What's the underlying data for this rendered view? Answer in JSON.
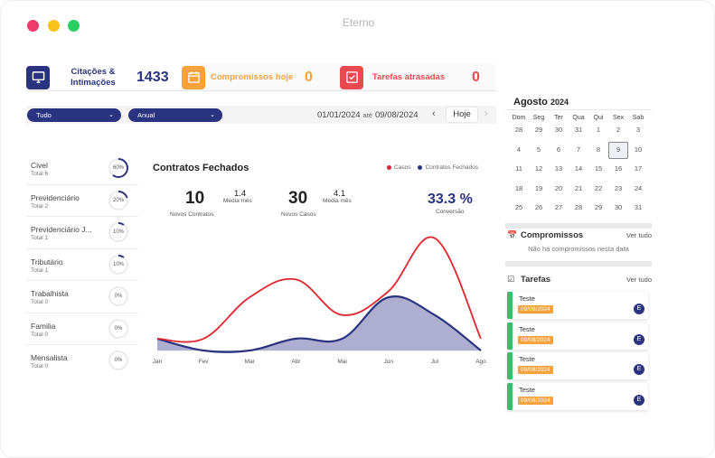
{
  "window": {
    "title": "Eterno"
  },
  "stats": {
    "citacoes": {
      "label_line1": "Citações &",
      "label_line2": "Intimações",
      "value": "1433"
    },
    "compromissos": {
      "label": "Compromissos hoje",
      "value": "0"
    },
    "tarefas": {
      "label": "Tarefas atrasadas",
      "value": "0"
    }
  },
  "filters": {
    "area_select": "Tudo",
    "period_select": "Anual",
    "date_start": "01/01/2024",
    "date_sep": "até",
    "date_end": "09/08/2024",
    "today_label": "Hoje"
  },
  "areas": [
    {
      "name": "Civel",
      "total": "Total 6",
      "pct": "60%",
      "fraction": 0.6
    },
    {
      "name": "Previdenciário",
      "total": "Total 2",
      "pct": "20%",
      "fraction": 0.2
    },
    {
      "name": "Previdenciário J...",
      "total": "Total 1",
      "pct": "10%",
      "fraction": 0.1
    },
    {
      "name": "Tributário",
      "total": "Total 1",
      "pct": "10%",
      "fraction": 0.1
    },
    {
      "name": "Trabalhista",
      "total": "Total 0",
      "pct": "0%",
      "fraction": 0
    },
    {
      "name": "Familia",
      "total": "Total 0",
      "pct": "0%",
      "fraction": 0
    },
    {
      "name": "Mensalista",
      "total": "Total 0",
      "pct": "0%",
      "fraction": 0
    }
  ],
  "chart_card": {
    "title": "Contratos Fechados",
    "kpis": {
      "contratos_value": "10",
      "contratos_label": "Novos Contratos",
      "contratos_avg": "1.4",
      "contratos_avg_label": "Média mês",
      "casos_value": "30",
      "casos_label": "Novos Casos",
      "casos_avg": "4.1",
      "casos_avg_label": "Média mês",
      "conversao_value": "33.3 %",
      "conversao_label": "Conversão"
    }
  },
  "chart_data": {
    "type": "area",
    "categories": [
      "Jan",
      "Fev",
      "Mar",
      "Abr",
      "Mai",
      "Jun",
      "Jul",
      "Ago"
    ],
    "series": [
      {
        "name": "Casos",
        "values": [
          1,
          1,
          4.5,
          6,
          3,
          5,
          9.5,
          1
        ],
        "color": "#e0252e"
      },
      {
        "name": "Contratos Fechados",
        "values": [
          1,
          0,
          0,
          1,
          1,
          4.5,
          3,
          0
        ],
        "color": "#2a3380"
      }
    ],
    "legend": "top-right",
    "grid": false
  },
  "calendar": {
    "month": "Agosto",
    "year": "2024",
    "weekdays": [
      "Dom",
      "Seg",
      "Ter",
      "Qua",
      "Qui",
      "Sex",
      "Sab"
    ],
    "weeks": [
      [
        "28",
        "29",
        "30",
        "31",
        "1",
        "2",
        "3"
      ],
      [
        "4",
        "5",
        "6",
        "7",
        "8",
        "9",
        "10"
      ],
      [
        "11",
        "12",
        "13",
        "14",
        "15",
        "16",
        "17"
      ],
      [
        "18",
        "19",
        "20",
        "21",
        "22",
        "23",
        "24"
      ],
      [
        "25",
        "26",
        "27",
        "28",
        "29",
        "30",
        "31"
      ]
    ],
    "selected": "9"
  },
  "compromissos": {
    "title": "Compromissos",
    "link": "Ver tudo",
    "empty": "Não há compromissos nesta data"
  },
  "tarefas": {
    "title": "Tarefas",
    "link": "Ver tudo",
    "items": [
      {
        "title": "Teste",
        "date": "09/08/2024",
        "avatar": "E"
      },
      {
        "title": "Teste",
        "date": "09/08/2024",
        "avatar": "E"
      },
      {
        "title": "Teste",
        "date": "09/08/2024",
        "avatar": "E"
      },
      {
        "title": "Teste",
        "date": "09/08/2024",
        "avatar": "E"
      }
    ]
  },
  "colors": {
    "primary": "#2a3380",
    "orange": "#f7a23a",
    "red": "#e94a52",
    "green": "#3dbb6c"
  }
}
